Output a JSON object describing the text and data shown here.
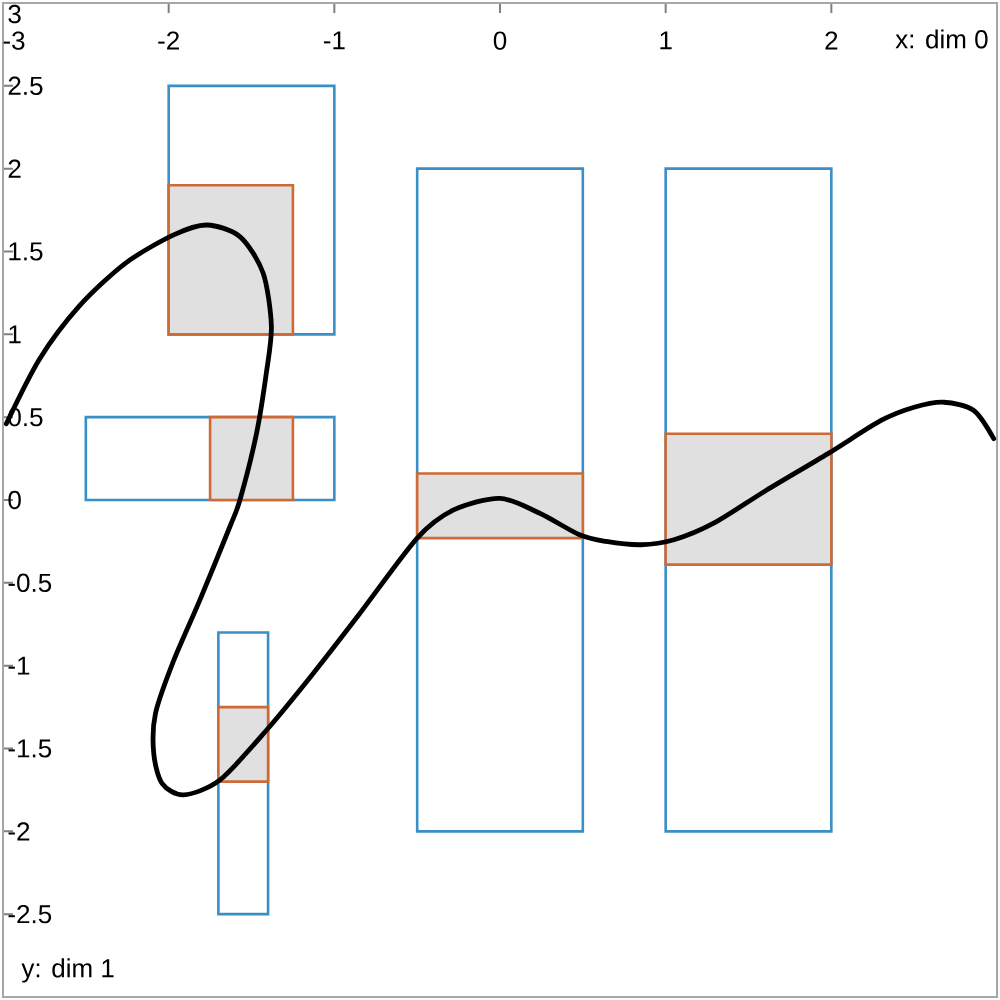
{
  "chart_data": {
    "type": "histogram",
    "xlabel": "x: dim 0",
    "ylabel": "y: dim 1",
    "xlim": [
      -3,
      3
    ],
    "ylim": [
      -3,
      3
    ],
    "xticks": [
      -3,
      -2,
      -1,
      0,
      1,
      2
    ],
    "yticks": [
      -2.5,
      -2,
      -1.5,
      -1,
      -0.5,
      0,
      0.5,
      1,
      1.5,
      2,
      2.5,
      3
    ],
    "series": [
      {
        "color": "#3b8fc7",
        "bins": [
          -2.5,
          -1
        ],
        "base": [
          0
        ],
        "values": [
          0.5
        ]
      },
      {
        "color": "#3b8fc7",
        "bins": [
          -1.7,
          -1.4
        ],
        "base": [
          -2.5
        ],
        "values": [
          1.7
        ]
      },
      {
        "color": "#3b8fc7",
        "bins": [
          -2,
          -1
        ],
        "base": [
          1
        ],
        "values": [
          1.5
        ]
      },
      {
        "color": "#3b8fc7",
        "bins": [
          -0.5,
          0.5
        ],
        "base": [
          -2
        ],
        "values": [
          4
        ]
      },
      {
        "color": "#3b8fc7",
        "bins": [
          1,
          2
        ],
        "base": [
          -2
        ],
        "values": [
          4
        ]
      },
      {
        "color": "#cd6a35",
        "colors": [
          "#e0e0e0"
        ],
        "bins": [
          -2,
          -1.25
        ],
        "base": [
          1
        ],
        "values": [
          0.9
        ]
      },
      {
        "color": "#cd6a35",
        "colors": [
          "#e0e0e0"
        ],
        "bins": [
          -1.7,
          -1.4
        ],
        "base": [
          -1.7
        ],
        "values": [
          0.45
        ]
      },
      {
        "color": "#cd6a35",
        "colors": [
          "#e0e0e0"
        ],
        "bins": [
          -1.75,
          -1.25
        ],
        "base": [
          0
        ],
        "values": [
          0.5
        ]
      },
      {
        "color": "#cd6a35",
        "colors": [
          "#e0e0e0"
        ],
        "bins": [
          -0.5,
          0.5
        ],
        "base": [
          -0.23
        ],
        "values": [
          0.39
        ]
      },
      {
        "color": "#cd6a35",
        "colors": [
          "#e0e0e0"
        ],
        "bins": [
          1,
          2
        ],
        "base": [
          -0.39
        ],
        "values": [
          0.79
        ]
      },
      {
        "type": "line",
        "color": "#000000",
        "x": [
          -2.98,
          -2.78,
          -2.54,
          -2.26,
          -1.97,
          -1.77,
          -1.57,
          -1.43,
          -1.38,
          -1.41,
          -1.47,
          -1.57,
          -1.63,
          -1.81,
          -1.97,
          -2.08,
          -2.09,
          -2.04,
          -1.91,
          -1.69,
          -1.41,
          -1.13,
          -0.85,
          -0.5,
          -0.28,
          0,
          0.24,
          0.48,
          0.64,
          0.85,
          1.05,
          1.29,
          1.61,
          1.98,
          2.3,
          2.5,
          2.68,
          2.86,
          2.98
        ],
        "values": [
          0.46,
          0.85,
          1.17,
          1.43,
          1.6,
          1.66,
          1.59,
          1.37,
          1.05,
          0.77,
          0.4,
          0,
          -0.16,
          -0.6,
          -0.97,
          -1.29,
          -1.53,
          -1.71,
          -1.78,
          -1.69,
          -1.39,
          -1.05,
          -0.69,
          -0.23,
          -0.06,
          0.01,
          -0.08,
          -0.21,
          -0.25,
          -0.27,
          -0.24,
          -0.14,
          0.06,
          0.28,
          0.48,
          0.56,
          0.59,
          0.54,
          0.37
        ]
      }
    ]
  }
}
